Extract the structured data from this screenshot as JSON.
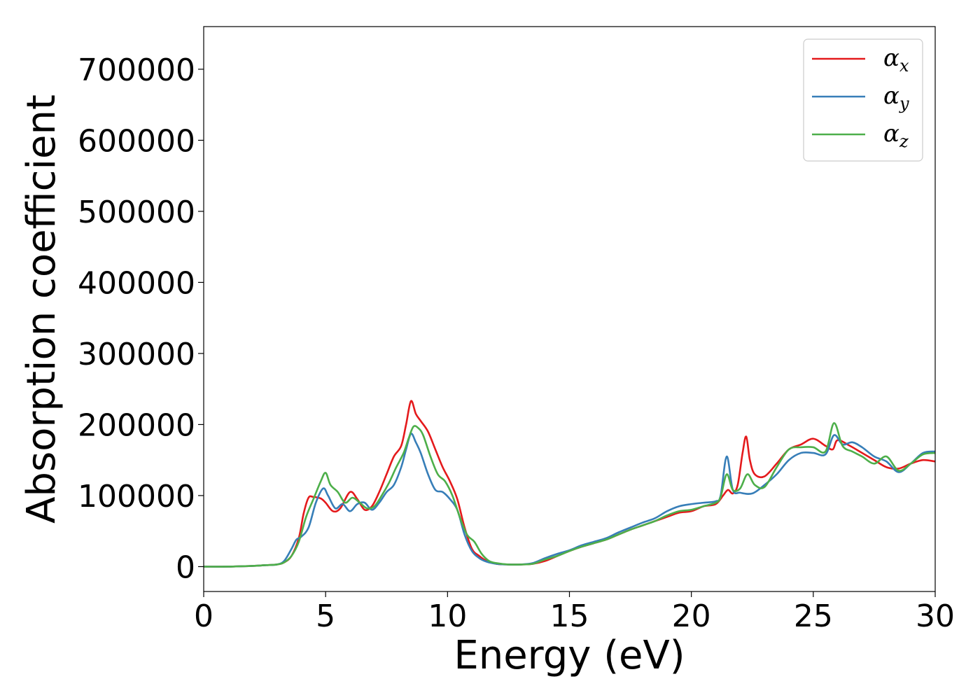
{
  "chart_data": {
    "type": "line",
    "xlabel": "Energy (eV)",
    "ylabel": "Absorption coefficient",
    "xlim": [
      0,
      30
    ],
    "ylim": [
      -35000,
      760000
    ],
    "xticks": [
      0,
      5,
      10,
      15,
      20,
      25,
      30
    ],
    "yticks": [
      0,
      100000,
      200000,
      300000,
      400000,
      500000,
      600000,
      700000
    ],
    "grid": false,
    "legend_position": "top-right",
    "series": [
      {
        "name": "α_x",
        "name_base": "α",
        "name_sub": "x",
        "color": "#e41a1c",
        "x": [
          0,
          1,
          2,
          2.5,
          3,
          3.3,
          3.6,
          3.9,
          4.1,
          4.3,
          4.5,
          4.8,
          5.0,
          5.3,
          5.6,
          6.0,
          6.3,
          6.6,
          6.9,
          7.2,
          7.5,
          7.8,
          8.1,
          8.3,
          8.5,
          8.7,
          8.9,
          9.2,
          9.5,
          9.8,
          10.1,
          10.4,
          10.7,
          11.0,
          11.3,
          11.6,
          12.0,
          12.5,
          13.0,
          13.5,
          14.0,
          14.5,
          15.0,
          15.5,
          16.0,
          16.5,
          17.0,
          17.5,
          18.0,
          18.5,
          19.0,
          19.5,
          20.0,
          20.5,
          21.0,
          21.3,
          21.5,
          21.7,
          21.9,
          22.1,
          22.25,
          22.4,
          22.6,
          23.0,
          23.5,
          24.0,
          24.5,
          25.0,
          25.5,
          25.8,
          26.0,
          26.5,
          27.0,
          27.5,
          28.0,
          28.5,
          29.0,
          29.5,
          30.0
        ],
        "y": [
          0,
          0,
          1000,
          2000,
          3000,
          6000,
          15000,
          40000,
          75000,
          97000,
          98000,
          96000,
          90000,
          78000,
          82000,
          105000,
          95000,
          80000,
          85000,
          105000,
          130000,
          155000,
          170000,
          200000,
          233000,
          215000,
          205000,
          190000,
          165000,
          140000,
          120000,
          95000,
          55000,
          25000,
          15000,
          8000,
          4000,
          3000,
          3000,
          4000,
          8000,
          15000,
          22000,
          28000,
          33000,
          38000,
          45000,
          52000,
          58000,
          64000,
          70000,
          76000,
          78000,
          85000,
          88000,
          100000,
          108000,
          103000,
          115000,
          160000,
          183000,
          150000,
          130000,
          127000,
          145000,
          165000,
          172000,
          180000,
          170000,
          165000,
          178000,
          170000,
          160000,
          150000,
          140000,
          138000,
          145000,
          150000,
          148000
        ]
      },
      {
        "name": "α_y",
        "name_base": "α",
        "name_sub": "y",
        "color": "#377eb8",
        "x": [
          0,
          1,
          2,
          2.5,
          3,
          3.3,
          3.6,
          3.8,
          4.0,
          4.3,
          4.6,
          4.9,
          5.1,
          5.4,
          5.7,
          6.0,
          6.3,
          6.6,
          6.9,
          7.2,
          7.5,
          7.8,
          8.1,
          8.3,
          8.5,
          8.7,
          8.9,
          9.2,
          9.5,
          9.8,
          10.1,
          10.4,
          10.7,
          11.0,
          11.3,
          11.6,
          12.0,
          12.5,
          13.0,
          13.5,
          14.0,
          14.5,
          15.0,
          15.5,
          16.0,
          16.5,
          17.0,
          17.5,
          18.0,
          18.5,
          19.0,
          19.5,
          20.0,
          20.5,
          21.0,
          21.2,
          21.45,
          21.7,
          22.0,
          22.5,
          23.0,
          23.5,
          24.0,
          24.5,
          25.0,
          25.5,
          25.85,
          26.2,
          26.6,
          27.0,
          27.5,
          28.0,
          28.5,
          29.0,
          29.5,
          30.0
        ],
        "y": [
          0,
          0,
          1000,
          2000,
          3000,
          8000,
          25000,
          38000,
          42000,
          55000,
          90000,
          110000,
          100000,
          82000,
          88000,
          78000,
          88000,
          90000,
          80000,
          90000,
          105000,
          115000,
          140000,
          165000,
          187000,
          175000,
          160000,
          130000,
          108000,
          105000,
          95000,
          80000,
          45000,
          22000,
          12000,
          7000,
          4000,
          3000,
          3000,
          5000,
          12000,
          18000,
          23000,
          30000,
          35000,
          40000,
          48000,
          55000,
          62000,
          68000,
          78000,
          85000,
          88000,
          90000,
          92000,
          100000,
          155000,
          108000,
          104000,
          103000,
          115000,
          130000,
          150000,
          160000,
          160000,
          158000,
          185000,
          172000,
          175000,
          168000,
          155000,
          148000,
          133000,
          145000,
          160000,
          162000
        ]
      },
      {
        "name": "α_z",
        "name_base": "α",
        "name_sub": "z",
        "color": "#4daf4a",
        "x": [
          0,
          1,
          2,
          2.5,
          3,
          3.3,
          3.6,
          3.9,
          4.2,
          4.5,
          4.8,
          5.0,
          5.2,
          5.5,
          5.8,
          6.1,
          6.4,
          6.7,
          7.0,
          7.3,
          7.6,
          7.9,
          8.2,
          8.4,
          8.6,
          8.8,
          9.0,
          9.3,
          9.6,
          9.9,
          10.2,
          10.5,
          10.8,
          11.1,
          11.4,
          11.7,
          12.0,
          12.5,
          13.0,
          13.5,
          14.0,
          14.5,
          15.0,
          15.5,
          16.0,
          16.5,
          17.0,
          17.5,
          18.0,
          18.5,
          19.0,
          19.5,
          20.0,
          20.5,
          21.0,
          21.2,
          21.45,
          21.7,
          22.0,
          22.3,
          22.6,
          23.0,
          23.5,
          24.0,
          24.5,
          25.0,
          25.5,
          25.85,
          26.2,
          26.6,
          27.0,
          27.5,
          28.0,
          28.5,
          29.0,
          29.5,
          30.0
        ],
        "y": [
          0,
          0,
          1000,
          2000,
          3000,
          6000,
          15000,
          35000,
          70000,
          95000,
          120000,
          132000,
          115000,
          105000,
          90000,
          97000,
          90000,
          82000,
          85000,
          100000,
          118000,
          140000,
          160000,
          180000,
          197000,
          195000,
          185000,
          155000,
          130000,
          120000,
          100000,
          70000,
          45000,
          35000,
          18000,
          8000,
          5000,
          3000,
          3000,
          4000,
          10000,
          15000,
          22000,
          28000,
          33000,
          38000,
          45000,
          52000,
          58000,
          64000,
          72000,
          78000,
          80000,
          85000,
          90000,
          98000,
          130000,
          108000,
          110000,
          130000,
          115000,
          112000,
          140000,
          165000,
          168000,
          168000,
          162000,
          202000,
          170000,
          162000,
          155000,
          145000,
          155000,
          135000,
          145000,
          158000,
          160000
        ]
      }
    ]
  }
}
